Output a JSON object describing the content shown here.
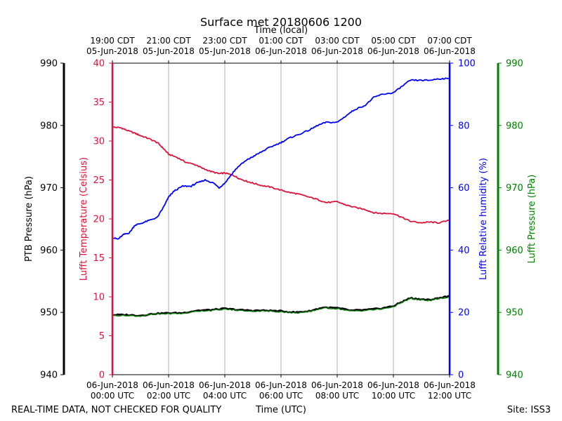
{
  "chart_data": {
    "type": "line",
    "title": "Surface met 20180606 1200",
    "top_axis_label": "Time (local)",
    "bottom_axis_label": "Time (UTC)",
    "footer_left": "REAL-TIME DATA, NOT CHECKED FOR QUALITY",
    "footer_right": "Site: ISS3",
    "x_range_hours_utc": [
      0,
      12
    ],
    "utc_ticks": [
      {
        "h": 0,
        "date": "06-Jun-2018",
        "time": "00:00 UTC"
      },
      {
        "h": 2,
        "date": "06-Jun-2018",
        "time": "02:00 UTC"
      },
      {
        "h": 4,
        "date": "06-Jun-2018",
        "time": "04:00 UTC"
      },
      {
        "h": 6,
        "date": "06-Jun-2018",
        "time": "06:00 UTC"
      },
      {
        "h": 8,
        "date": "06-Jun-2018",
        "time": "08:00 UTC"
      },
      {
        "h": 10,
        "date": "06-Jun-2018",
        "time": "10:00 UTC"
      },
      {
        "h": 12,
        "date": "06-Jun-2018",
        "time": "12:00 UTC"
      }
    ],
    "local_ticks": [
      {
        "h": 0,
        "time": "19:00 CDT",
        "date": "05-Jun-2018"
      },
      {
        "h": 2,
        "time": "21:00 CDT",
        "date": "05-Jun-2018"
      },
      {
        "h": 4,
        "time": "23:00 CDT",
        "date": "05-Jun-2018"
      },
      {
        "h": 6,
        "time": "01:00 CDT",
        "date": "06-Jun-2018"
      },
      {
        "h": 8,
        "time": "03:00 CDT",
        "date": "06-Jun-2018"
      },
      {
        "h": 10,
        "time": "05:00 CDT",
        "date": "06-Jun-2018"
      },
      {
        "h": 12,
        "time": "07:00 CDT",
        "date": "06-Jun-2018"
      }
    ],
    "axes": {
      "ptb_pressure": {
        "label": "PTB Pressure (hPa)",
        "color": "#000000",
        "ylim": [
          940,
          990
        ],
        "ticks": [
          940,
          950,
          960,
          970,
          980,
          990
        ]
      },
      "temperature": {
        "label": "Lufft Temperature (Celsius)",
        "color": "#dc143c",
        "ylim": [
          0,
          40
        ],
        "ticks": [
          0,
          5,
          10,
          15,
          20,
          25,
          30,
          35,
          40
        ]
      },
      "humidity": {
        "label": "Lufft Relative humidity (%)",
        "color": "#0000ff",
        "ylim": [
          0,
          100
        ],
        "ticks": [
          0,
          20,
          40,
          60,
          80,
          100
        ]
      },
      "lufft_pressure": {
        "label": "Lufft Pressure (hPa)",
        "color": "#008000",
        "ylim": [
          940,
          990
        ],
        "ticks": [
          940,
          950,
          960,
          970,
          980,
          990
        ]
      }
    },
    "series": [
      {
        "name": "Lufft Temperature",
        "axis": "temperature",
        "color": "#dc143c",
        "x": [
          0,
          0.3,
          0.5,
          0.8,
          1.0,
          1.3,
          1.6,
          1.8,
          2.0,
          2.3,
          2.6,
          3.0,
          3.2,
          3.5,
          3.8,
          4.0,
          4.3,
          4.5,
          4.8,
          5.0,
          5.3,
          5.6,
          6.0,
          6.3,
          6.6,
          7.0,
          7.3,
          7.6,
          8.0,
          8.3,
          8.6,
          9.0,
          9.3,
          9.6,
          10.0,
          10.3,
          10.6,
          11.0,
          11.3,
          11.6,
          12.0
        ],
        "values": [
          31.8,
          31.7,
          31.4,
          31.0,
          30.7,
          30.3,
          29.8,
          29.1,
          28.3,
          27.9,
          27.3,
          26.9,
          26.5,
          26.1,
          25.8,
          25.9,
          25.6,
          25.2,
          24.8,
          24.6,
          24.3,
          24.1,
          23.7,
          23.4,
          23.2,
          22.8,
          22.5,
          22.1,
          22.2,
          21.8,
          21.5,
          21.2,
          20.8,
          20.7,
          20.7,
          20.2,
          19.7,
          19.5,
          19.6,
          19.5,
          19.8
        ]
      },
      {
        "name": "Lufft Relative humidity",
        "axis": "humidity",
        "color": "#0000ff",
        "x": [
          0,
          0.2,
          0.4,
          0.6,
          0.8,
          1.0,
          1.3,
          1.6,
          1.8,
          2.0,
          2.2,
          2.5,
          2.8,
          3.0,
          3.3,
          3.6,
          3.8,
          4.0,
          4.3,
          4.5,
          4.8,
          5.0,
          5.3,
          5.6,
          6.0,
          6.3,
          6.6,
          7.0,
          7.3,
          7.6,
          8.0,
          8.3,
          8.6,
          9.0,
          9.3,
          9.6,
          10.0,
          10.3,
          10.6,
          11.0,
          11.3,
          11.6,
          12.0
        ],
        "values": [
          44,
          43.5,
          45,
          45.5,
          48,
          48.5,
          49.5,
          50.5,
          53.5,
          57,
          59,
          60.5,
          60.5,
          61.5,
          62.5,
          61.5,
          60,
          61.5,
          65,
          67,
          69,
          70,
          71.5,
          73,
          74.5,
          76,
          77,
          78.5,
          80,
          81,
          81,
          83,
          85,
          86.5,
          89,
          90,
          90.5,
          92.5,
          94.5,
          94.5,
          94.5,
          95,
          95
        ]
      },
      {
        "name": "PTB Pressure",
        "axis": "ptb_pressure",
        "color": "#000000",
        "x": [
          0,
          0.5,
          1.0,
          1.5,
          2.0,
          2.5,
          3.0,
          3.5,
          4.0,
          4.5,
          5.0,
          5.5,
          6.0,
          6.5,
          7.0,
          7.5,
          8.0,
          8.5,
          9.0,
          9.5,
          10.0,
          10.3,
          10.6,
          11.0,
          11.3,
          11.6,
          12.0
        ],
        "values": [
          949.6,
          949.6,
          949.5,
          949.8,
          949.9,
          949.9,
          950.3,
          950.4,
          950.6,
          950.4,
          950.3,
          950.3,
          950.2,
          950.0,
          950.2,
          950.8,
          950.7,
          950.3,
          950.4,
          950.6,
          951.0,
          951.7,
          952.3,
          952.1,
          952.0,
          952.3,
          952.6
        ]
      },
      {
        "name": "Lufft Pressure",
        "axis": "lufft_pressure",
        "color": "#008000",
        "x": [
          0,
          0.5,
          1.0,
          1.5,
          2.0,
          2.5,
          3.0,
          3.5,
          4.0,
          4.5,
          5.0,
          5.5,
          6.0,
          6.5,
          7.0,
          7.5,
          8.0,
          8.5,
          9.0,
          9.5,
          10.0,
          10.3,
          10.6,
          11.0,
          11.3,
          11.6,
          12.0
        ],
        "values": [
          949.5,
          949.5,
          949.4,
          949.7,
          949.8,
          949.8,
          950.2,
          950.3,
          950.5,
          950.3,
          950.2,
          950.2,
          950.1,
          949.9,
          950.1,
          950.7,
          950.6,
          950.2,
          950.3,
          950.5,
          950.9,
          951.6,
          952.2,
          952.0,
          951.9,
          952.2,
          952.4
        ]
      }
    ],
    "grid": "vertical"
  }
}
